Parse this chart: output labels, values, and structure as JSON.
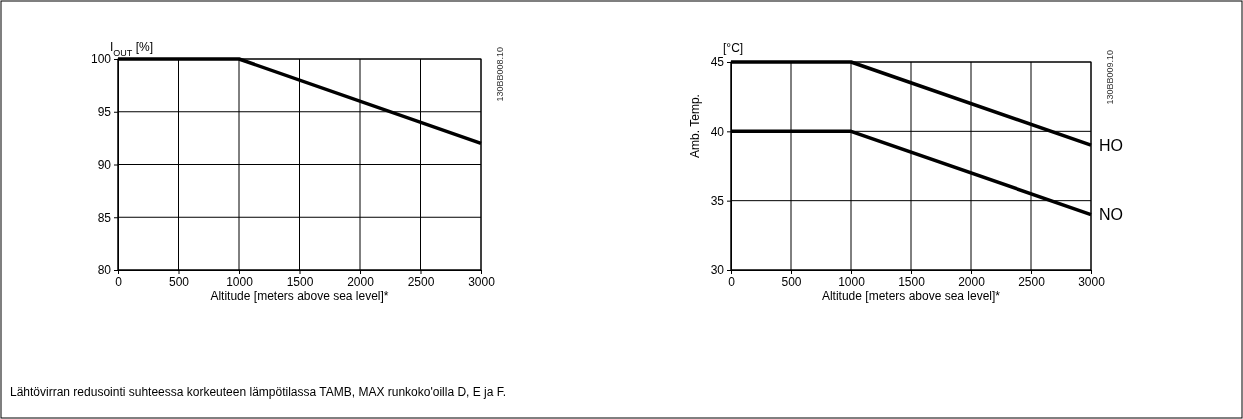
{
  "chart_data": [
    {
      "type": "line",
      "ylabel": "I$_{OUT}$ [%]",
      "xlabel": "Altitude [meters above sea level]*",
      "x": [
        0,
        1000,
        3000
      ],
      "series": [
        {
          "color": "#000000",
          "values": [
            100,
            100,
            92
          ]
        }
      ],
      "xlim": [
        0,
        3000
      ],
      "xticks": [
        0,
        500,
        1000,
        1500,
        2000,
        2500,
        3000
      ],
      "ylim": [
        80,
        100
      ],
      "yticks": [
        80,
        85,
        90,
        95,
        100
      ],
      "grid": true,
      "marker": "none",
      "line_style": "solid",
      "annotations": [
        "130BB008.10",
        "Lähtövirran redusointi suhteessa korkeuteen lämpötilassa TAMB, MAX runkoko'oilla D, E ja F."
      ]
    },
    {
      "type": "line",
      "ylabel": "Amb. Temp.",
      "xlabel": "Altitude [meters above sea level]*",
      "x": [
        0,
        1000,
        3000
      ],
      "series": [
        {
          "name": "HO",
          "color": "#000000",
          "values": [
            45,
            45,
            39
          ]
        },
        {
          "name": "NO",
          "color": "#000000",
          "values": [
            40,
            40,
            34
          ]
        }
      ],
      "xlim": [
        0,
        3000
      ],
      "xticks": [
        0,
        500,
        1000,
        1500,
        2000,
        2500,
        3000
      ],
      "ylim": [
        30,
        45
      ],
      "yticks": [
        30,
        35,
        40,
        45
      ],
      "grid": true,
      "marker": "none",
      "line_style": "solid",
      "annotations": [
        "130BB009.10",
        "[°C]"
      ]
    }
  ]
}
